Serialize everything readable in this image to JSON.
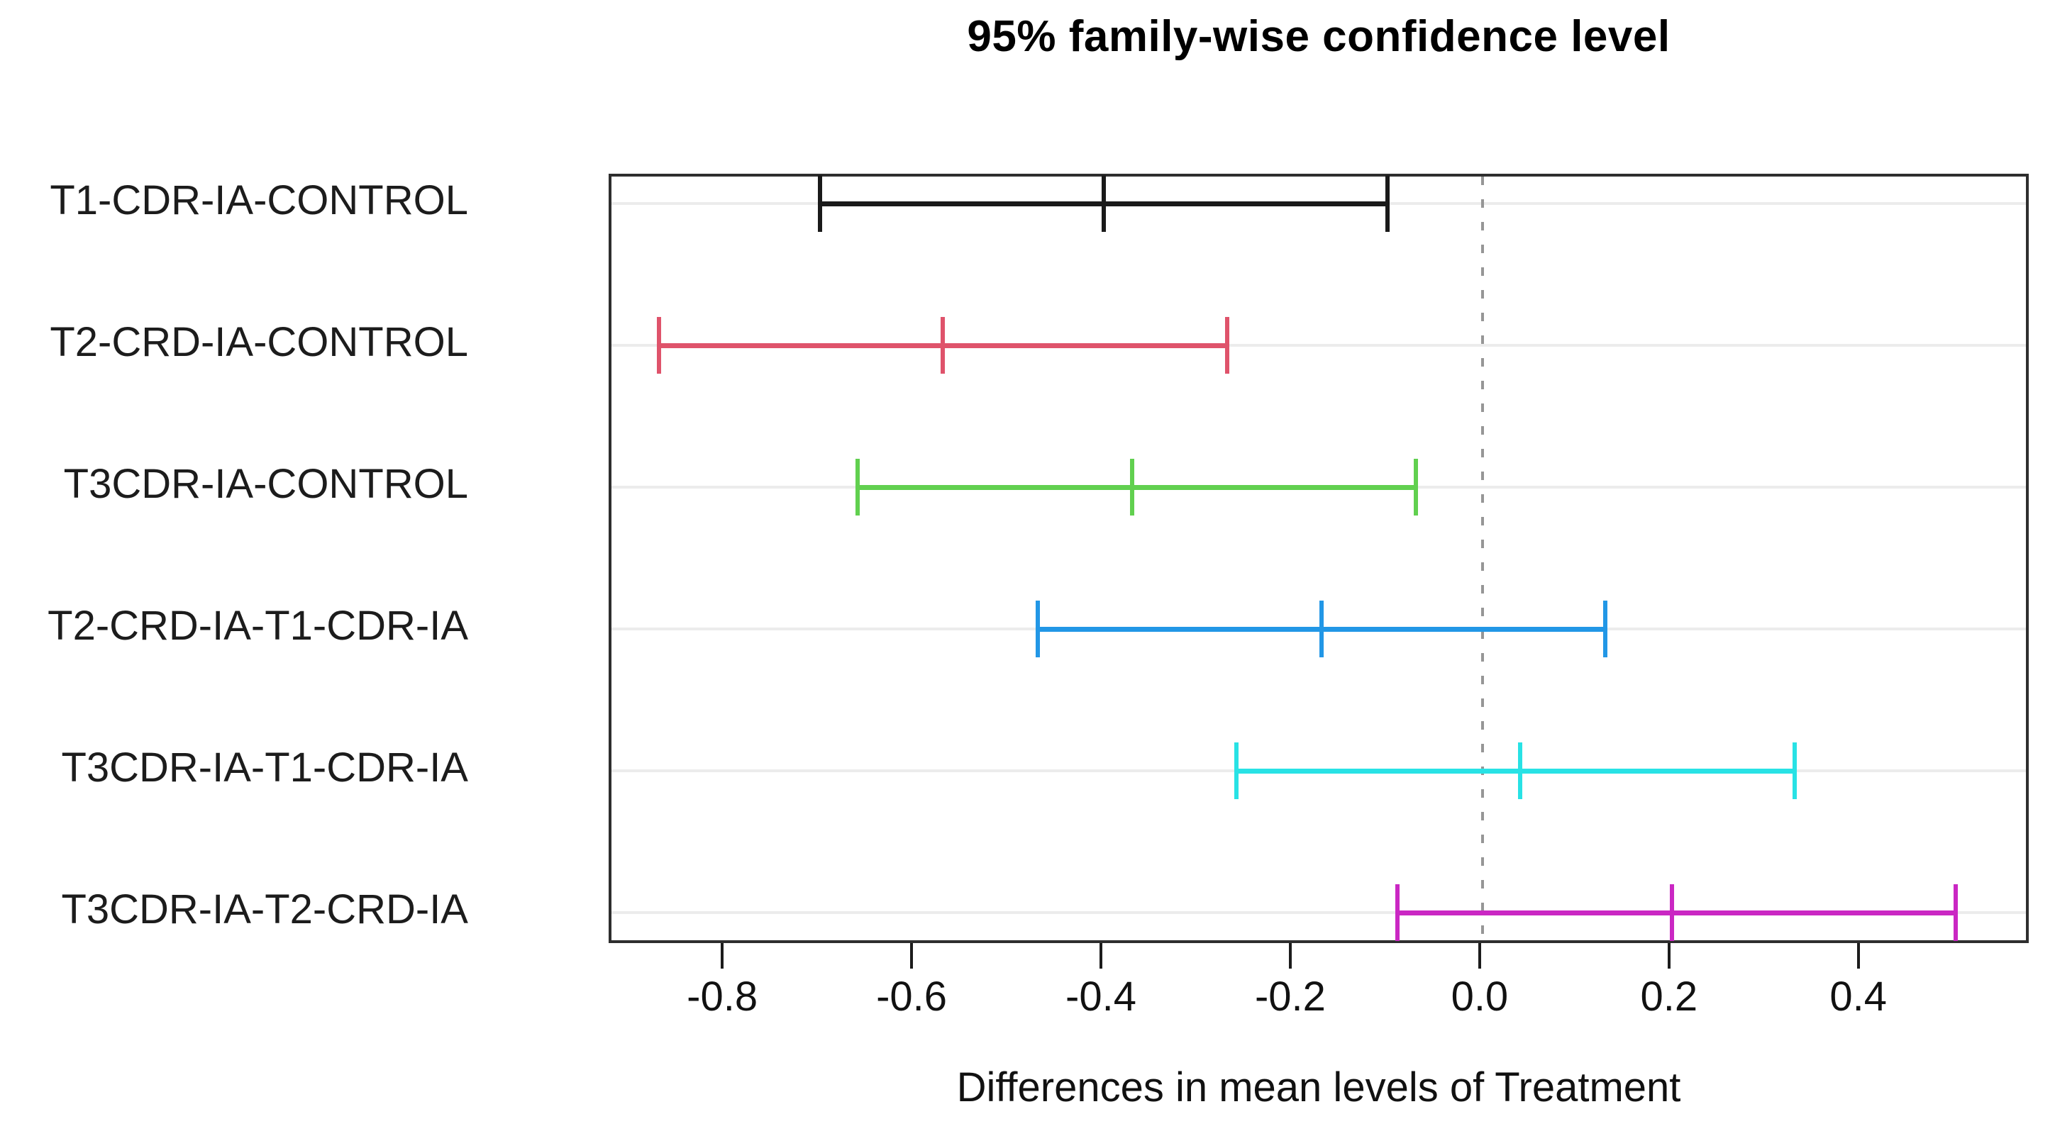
{
  "chart_data": {
    "type": "errorbar",
    "title": "95% family-wise confidence level",
    "xlabel": "Differences in mean levels of Treatment",
    "ylabel": "",
    "xlim": [
      -0.92,
      0.58
    ],
    "grid": true,
    "legend": "none",
    "zero_reference_line": 0.0,
    "x_ticks": {
      "values": [
        -0.8,
        -0.6,
        -0.4,
        -0.2,
        0.0,
        0.2,
        0.4
      ],
      "labels": [
        "-0.8",
        "-0.6",
        "-0.4",
        "-0.2",
        "0.0",
        "0.2",
        "0.4"
      ]
    },
    "rows": [
      {
        "label": "T1-CDR-IA-CONTROL",
        "lower": -0.7,
        "diff": -0.4,
        "upper": -0.1,
        "color": "#1a1a1a"
      },
      {
        "label": "T2-CRD-IA-CONTROL",
        "lower": -0.87,
        "diff": -0.57,
        "upper": -0.27,
        "color": "#DF536B"
      },
      {
        "label": "T3CDR-IA-CONTROL",
        "lower": -0.66,
        "diff": -0.37,
        "upper": -0.07,
        "color": "#61D04F"
      },
      {
        "label": "T2-CRD-IA-T1-CDR-IA",
        "lower": -0.47,
        "diff": -0.17,
        "upper": 0.13,
        "color": "#2297E6"
      },
      {
        "label": "T3CDR-IA-T1-CDR-IA",
        "lower": -0.26,
        "diff": 0.04,
        "upper": 0.33,
        "color": "#28E2E5"
      },
      {
        "label": "T3CDR-IA-T2-CRD-IA",
        "lower": -0.09,
        "diff": 0.2,
        "upper": 0.5,
        "color": "#CA27C3"
      }
    ]
  }
}
